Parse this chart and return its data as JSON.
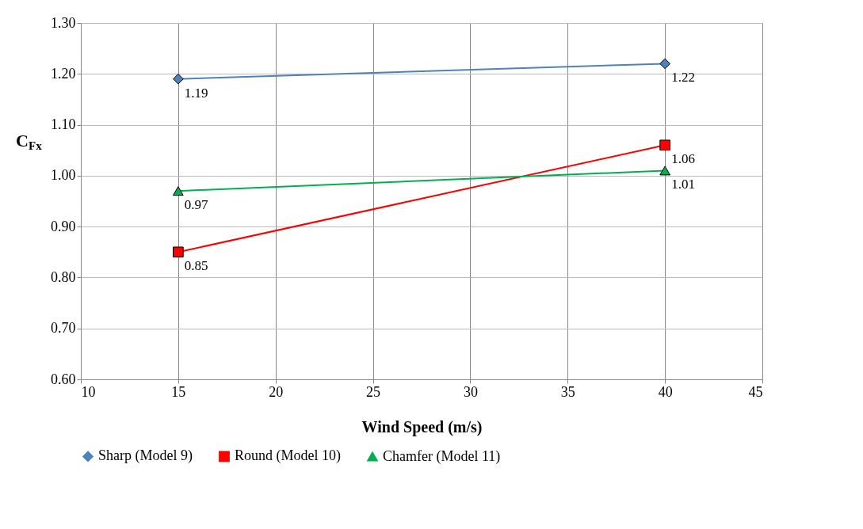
{
  "chart_data": {
    "type": "line",
    "xlabel": "Wind Speed (m/s)",
    "ylabel": "C$_{Fx}$",
    "x": [
      15,
      40
    ],
    "series": [
      {
        "name": "Sharp (Model 9)",
        "color": "#4f81bd",
        "marker": "diamond",
        "values": [
          1.19,
          1.22
        ]
      },
      {
        "name": "Round (Model 10)",
        "color": "#ff0000",
        "marker": "square",
        "values": [
          0.85,
          1.06
        ]
      },
      {
        "name": "Chamfer (Model 11)",
        "color": "#00b050",
        "marker": "triangle",
        "values": [
          0.97,
          1.01
        ]
      }
    ],
    "xlim": [
      10,
      45
    ],
    "xticks": [
      10,
      15,
      20,
      25,
      30,
      35,
      40,
      45
    ],
    "ylim": [
      0.6,
      1.3
    ],
    "yticks": [
      {
        "value": 0.6,
        "label": "0.60"
      },
      {
        "value": 0.7,
        "label": "0.70"
      },
      {
        "value": 0.8,
        "label": "0.80"
      },
      {
        "value": 0.9,
        "label": "0.90"
      },
      {
        "value": 1.0,
        "label": "1.00"
      },
      {
        "value": 1.1,
        "label": "1.10"
      },
      {
        "value": 1.2,
        "label": "1.20"
      },
      {
        "value": 1.3,
        "label": "1.30"
      }
    ],
    "grid": true,
    "legend": "bottom",
    "data_labels": true,
    "line_style": "solid"
  }
}
